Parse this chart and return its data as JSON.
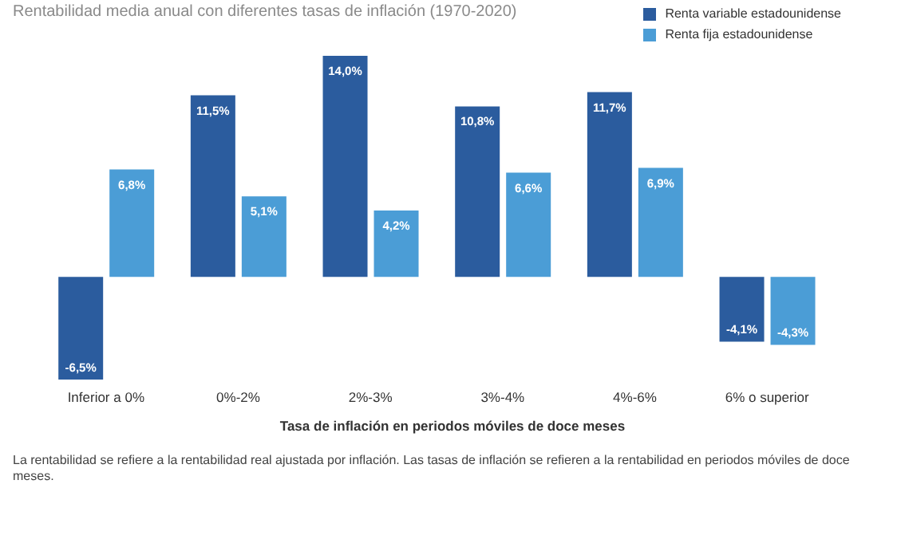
{
  "chart_data": {
    "type": "bar",
    "title": "Rentabilidad media anual con diferentes tasas de inflación (1970-2020)",
    "xlabel": "Tasa de inflación en periodos móviles de doce meses",
    "categories": [
      "Inferior a 0%",
      "0%-2%",
      "2%-3%",
      "3%-4%",
      "4%-6%",
      "6% o superior"
    ],
    "series": [
      {
        "name": "Renta variable estadounidense",
        "color": "#2b5c9e",
        "values": [
          -6.5,
          11.5,
          14.0,
          10.8,
          11.7,
          -4.1
        ],
        "value_labels": [
          "-6,5%",
          "11,5%",
          "14,0%",
          "10,8%",
          "11,7%",
          "-4,1%"
        ]
      },
      {
        "name": "Renta fija estadounidense",
        "color": "#4b9dd6",
        "values": [
          6.8,
          5.1,
          4.2,
          6.6,
          6.9,
          -4.3
        ],
        "value_labels": [
          "6,8%",
          "5,1%",
          "4,2%",
          "6,6%",
          "6,9%",
          "-4,3%"
        ]
      }
    ],
    "legend": "top right",
    "annotations": [
      "La rentabilidad se refiere a la rentabilidad real ajustada por inflación. Las tasas de inflación se refieren a la rentabilidad en periodos móviles de doce meses."
    ]
  }
}
